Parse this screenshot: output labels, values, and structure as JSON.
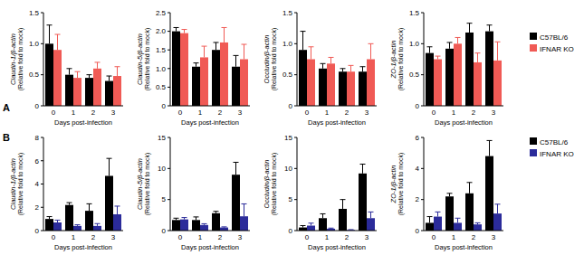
{
  "chart_data": [
    {
      "type": "bar",
      "panel_label": "A",
      "ylabel": [
        "Claudin-1/β-actin",
        "(Relative fold to mock)"
      ],
      "xlabel": "Days post-infection",
      "categories": [
        "0",
        "1",
        "2",
        "3"
      ],
      "ylim": [
        0,
        1.5
      ],
      "yticks": [
        0,
        0.5,
        {
          "value": 1,
          "label": "1.0"
        },
        1.5
      ],
      "series": [
        {
          "color": "#000000",
          "values": [
            1.0,
            0.5,
            0.45,
            0.4
          ],
          "errors": [
            0.3,
            0.1,
            0.05,
            0.08
          ]
        },
        {
          "color": "#f05a55",
          "values": [
            0.9,
            0.45,
            0.6,
            0.48
          ],
          "errors": [
            0.25,
            0.1,
            0.1,
            0.15
          ]
        }
      ]
    },
    {
      "type": "bar",
      "ylabel": [
        "Claudin-5/β-actin",
        "(Relative fold to mock)"
      ],
      "xlabel": "Days post-infection",
      "categories": [
        "0",
        "1",
        "2",
        "3"
      ],
      "ylim": [
        0,
        2.5
      ],
      "yticks": [
        0,
        0.5,
        {
          "value": 1,
          "label": "1.0"
        },
        1.5,
        {
          "value": 2,
          "label": "2.0"
        },
        2.5
      ],
      "series": [
        {
          "color": "#000000",
          "values": [
            2.0,
            1.05,
            1.5,
            1.05
          ],
          "errors": [
            0.1,
            0.1,
            0.2,
            0.3
          ]
        },
        {
          "color": "#f05a55",
          "values": [
            1.95,
            1.3,
            1.7,
            1.25
          ],
          "errors": [
            0.1,
            0.3,
            0.4,
            0.4
          ]
        }
      ]
    },
    {
      "type": "bar",
      "ylabel": [
        "Occludin/β-actin",
        "(Relative fold to mock)"
      ],
      "xlabel": "Days post-infection",
      "categories": [
        "0",
        "1",
        "2",
        "3"
      ],
      "ylim": [
        0,
        1.5
      ],
      "yticks": [
        0,
        0.5,
        {
          "value": 1,
          "label": "1.0"
        },
        1.5
      ],
      "series": [
        {
          "color": "#000000",
          "values": [
            0.9,
            0.6,
            0.55,
            0.55
          ],
          "errors": [
            0.3,
            0.08,
            0.05,
            0.08
          ]
        },
        {
          "color": "#f05a55",
          "values": [
            0.75,
            0.68,
            0.55,
            0.75
          ],
          "errors": [
            0.2,
            0.1,
            0.1,
            0.25
          ]
        }
      ]
    },
    {
      "type": "bar",
      "ylabel": [
        "ZO-1/β-actin",
        "(Relative fold to mock)"
      ],
      "xlabel": "Days post-infection",
      "legend": "right",
      "categories": [
        "0",
        "1",
        "2",
        "3"
      ],
      "ylim": [
        0,
        1.5
      ],
      "yticks": [
        0,
        0.5,
        {
          "value": 1,
          "label": "1.0"
        },
        1.5
      ],
      "series": [
        {
          "name": "C57BL/6",
          "color": "#000000",
          "values": [
            0.85,
            0.92,
            1.18,
            1.2
          ],
          "errors": [
            0.1,
            0.1,
            0.15,
            0.1
          ]
        },
        {
          "name": "IFNAR KO",
          "color": "#f05a55",
          "values": [
            0.75,
            1.0,
            0.7,
            0.73
          ],
          "errors": [
            0.05,
            0.1,
            0.15,
            0.3
          ]
        }
      ]
    },
    {
      "type": "bar",
      "panel_label": "B",
      "ylabel": [
        "Claudin-1/β-actin",
        "(Relative fold to mock)"
      ],
      "xlabel": "Days post-infection",
      "categories": [
        "0",
        "1",
        "2",
        "3"
      ],
      "ylim": [
        0,
        8
      ],
      "yticks": [
        0,
        2,
        4,
        6,
        8
      ],
      "series": [
        {
          "color": "#000000",
          "values": [
            1.0,
            2.2,
            1.7,
            4.7
          ],
          "errors": [
            0.2,
            0.2,
            0.6,
            1.5
          ]
        },
        {
          "color": "#2b2b9a",
          "values": [
            0.7,
            0.4,
            0.4,
            1.4
          ],
          "errors": [
            0.2,
            0.1,
            0.2,
            0.7
          ]
        }
      ]
    },
    {
      "type": "bar",
      "ylabel": [
        "Claudin-5/β-actin",
        "(Relative fold to mock)"
      ],
      "xlabel": "Days post-infection",
      "categories": [
        "0",
        "1",
        "2",
        "3"
      ],
      "ylim": [
        0,
        15
      ],
      "yticks": [
        0,
        5,
        10,
        15
      ],
      "series": [
        {
          "color": "#000000",
          "values": [
            1.7,
            1.7,
            2.8,
            9.0
          ],
          "errors": [
            0.3,
            0.5,
            0.3,
            2.0
          ]
        },
        {
          "color": "#2b2b9a",
          "values": [
            1.8,
            0.9,
            0.5,
            2.3
          ],
          "errors": [
            0.3,
            0.2,
            0.1,
            2.0
          ]
        }
      ]
    },
    {
      "type": "bar",
      "ylabel": [
        "Occludin/β-actin",
        "(Relative fold to mock)"
      ],
      "xlabel": "Days post-infection",
      "categories": [
        "0",
        "1",
        "2",
        "3"
      ],
      "ylim": [
        0,
        15
      ],
      "yticks": [
        0,
        5,
        10,
        15
      ],
      "series": [
        {
          "color": "#000000",
          "values": [
            0.5,
            2.0,
            3.5,
            9.2
          ],
          "errors": [
            0.3,
            0.7,
            1.5,
            1.5
          ]
        },
        {
          "color": "#2b2b9a",
          "values": [
            0.8,
            0.3,
            0.1,
            2.0
          ],
          "errors": [
            0.4,
            0.1,
            0.05,
            1.0
          ]
        }
      ]
    },
    {
      "type": "bar",
      "ylabel": [
        "ZO-1/β-actin",
        "(Relative fold to mock)"
      ],
      "xlabel": "Days post-infection",
      "legend": "right",
      "categories": [
        "0",
        "1",
        "2",
        "3"
      ],
      "ylim": [
        0,
        6
      ],
      "yticks": [
        0,
        2,
        4,
        6
      ],
      "series": [
        {
          "name": "C57BL/6",
          "color": "#000000",
          "values": [
            0.5,
            2.2,
            2.4,
            4.8
          ],
          "errors": [
            0.4,
            0.2,
            0.7,
            1.0
          ]
        },
        {
          "name": "IFNAR KO",
          "color": "#2b2b9a",
          "values": [
            0.9,
            0.5,
            0.4,
            1.1
          ],
          "errors": [
            0.3,
            0.3,
            0.1,
            0.6
          ]
        }
      ]
    }
  ]
}
